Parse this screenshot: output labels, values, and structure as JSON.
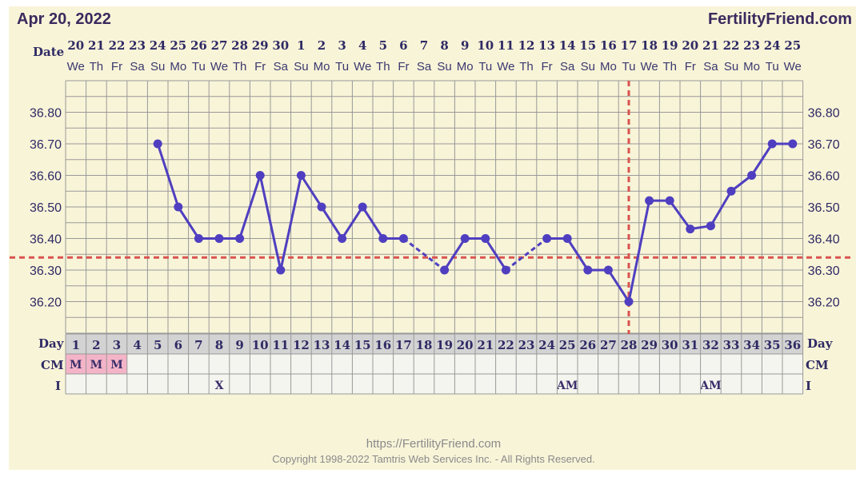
{
  "header": {
    "date": "Apr 20, 2022",
    "brand": "FertilityFriend.com"
  },
  "labels": {
    "date": "Date",
    "day": "Day",
    "cm": "CM",
    "intercourse": "I"
  },
  "footer": {
    "url": "https://FertilityFriend.com",
    "copyright": "Copyright 1998-2022 Tamtris Web Services Inc. - All Rights Reserved."
  },
  "colors": {
    "background": "#f8f4d8",
    "line": "#4f3fc0",
    "reference": "#d9534f",
    "mucus_cell": "#f4b4c8",
    "grid": "#999999"
  },
  "chart_data": {
    "type": "line",
    "title": "",
    "y_ticks": [
      "36.80",
      "36.70",
      "36.60",
      "36.50",
      "36.40",
      "36.30",
      "36.20"
    ],
    "ylim": [
      36.1,
      36.9
    ],
    "grid": true,
    "dates": [
      "20",
      "21",
      "22",
      "23",
      "24",
      "25",
      "26",
      "27",
      "28",
      "29",
      "30",
      "1",
      "2",
      "3",
      "4",
      "5",
      "6",
      "7",
      "8",
      "9",
      "10",
      "11",
      "12",
      "13",
      "14",
      "15",
      "16",
      "17",
      "18",
      "19",
      "20",
      "21",
      "22",
      "23",
      "24",
      "25"
    ],
    "weekdays": [
      "We",
      "Th",
      "Fr",
      "Sa",
      "Su",
      "Mo",
      "Tu",
      "We",
      "Th",
      "Fr",
      "Sa",
      "Su",
      "Mo",
      "Tu",
      "We",
      "Th",
      "Fr",
      "Sa",
      "Su",
      "Mo",
      "Tu",
      "We",
      "Th",
      "Fr",
      "Sa",
      "Su",
      "Mo",
      "Tu",
      "We",
      "Th",
      "Fr",
      "Sa",
      "Su",
      "Mo",
      "Tu",
      "We"
    ],
    "days": [
      "1",
      "2",
      "3",
      "4",
      "5",
      "6",
      "7",
      "8",
      "9",
      "10",
      "11",
      "12",
      "13",
      "14",
      "15",
      "16",
      "17",
      "18",
      "19",
      "20",
      "21",
      "22",
      "23",
      "24",
      "25",
      "26",
      "27",
      "28",
      "29",
      "30",
      "31",
      "32",
      "33",
      "34",
      "35",
      "36"
    ],
    "temperatures": [
      null,
      null,
      null,
      null,
      36.7,
      36.5,
      36.4,
      36.4,
      36.4,
      36.6,
      36.3,
      36.6,
      36.5,
      36.4,
      36.5,
      36.4,
      36.4,
      null,
      36.3,
      36.4,
      36.4,
      36.3,
      null,
      36.4,
      36.4,
      36.3,
      36.3,
      36.2,
      36.52,
      36.52,
      36.43,
      36.44,
      36.55,
      36.6,
      36.7,
      36.7
    ],
    "coverline": 36.34,
    "ovulation_day": 28,
    "cervical_mucus": [
      "M",
      "M",
      "M",
      "",
      "",
      "",
      "",
      "",
      "",
      "",
      "",
      "",
      "",
      "",
      "",
      "",
      "",
      "",
      "",
      "",
      "",
      "",
      "",
      "",
      "",
      "",
      "",
      "",
      "",
      "",
      "",
      "",
      "",
      "",
      "",
      ""
    ],
    "intercourse": [
      "",
      "",
      "",
      "",
      "",
      "",
      "",
      "X",
      "",
      "",
      "",
      "",
      "",
      "",
      "",
      "",
      "",
      "",
      "",
      "",
      "",
      "",
      "",
      "",
      "AM",
      "",
      "",
      "",
      "",
      "",
      "",
      "AM",
      "",
      "",
      "",
      ""
    ]
  }
}
